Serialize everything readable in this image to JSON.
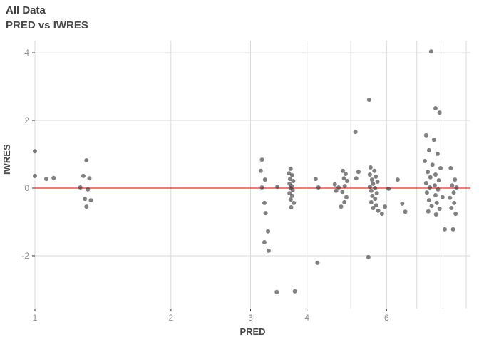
{
  "title": "All Data",
  "subtitle": "PRED vs IWRES",
  "colors": {
    "grid": "#d9d9d9",
    "tick_label": "#8c8c8c",
    "tick_mark": "#333333",
    "refline": "#d9352a",
    "point_fill": "rgba(50,50,50,0.62)"
  },
  "chart_data": {
    "type": "scatter",
    "title": "All Data",
    "subtitle": "PRED vs IWRES",
    "xlabel": "PRED",
    "ylabel": "IWRES",
    "x_scale": "log10",
    "xlim": [
      1,
      9.2
    ],
    "ylim": [
      -3.56,
      4.36
    ],
    "x_ticks": [
      1,
      2,
      3,
      4,
      6
    ],
    "x_gridlines": [
      1,
      2,
      3,
      4,
      5,
      6,
      7,
      8,
      9
    ],
    "y_ticks": [
      -2,
      0,
      2,
      4
    ],
    "grid": true,
    "legend": "none",
    "refline_y": 0,
    "points": [
      [
        1.0,
        1.09
      ],
      [
        1.0,
        0.36
      ],
      [
        1.06,
        0.27
      ],
      [
        1.1,
        0.3
      ],
      [
        1.3,
        0.82
      ],
      [
        1.28,
        0.36
      ],
      [
        1.32,
        0.29
      ],
      [
        1.26,
        0.02
      ],
      [
        1.31,
        -0.04
      ],
      [
        1.29,
        -0.32
      ],
      [
        1.33,
        -0.36
      ],
      [
        1.3,
        -0.55
      ],
      [
        3.18,
        0.84
      ],
      [
        3.16,
        0.51
      ],
      [
        3.23,
        0.25
      ],
      [
        3.18,
        0.02
      ],
      [
        3.44,
        0.04
      ],
      [
        3.22,
        -0.44
      ],
      [
        3.24,
        -0.74
      ],
      [
        3.28,
        -1.28
      ],
      [
        3.22,
        -1.6
      ],
      [
        3.29,
        -1.85
      ],
      [
        3.43,
        -3.07
      ],
      [
        3.68,
        0.57
      ],
      [
        3.65,
        0.44
      ],
      [
        3.71,
        0.38
      ],
      [
        3.67,
        0.27
      ],
      [
        3.73,
        0.21
      ],
      [
        3.66,
        0.13
      ],
      [
        3.7,
        0.06
      ],
      [
        3.68,
        0.0
      ],
      [
        3.72,
        -0.06
      ],
      [
        3.66,
        -0.15
      ],
      [
        3.71,
        -0.23
      ],
      [
        3.68,
        -0.34
      ],
      [
        3.74,
        -0.44
      ],
      [
        3.69,
        -0.57
      ],
      [
        3.76,
        -3.05
      ],
      [
        4.18,
        0.27
      ],
      [
        4.24,
        0.02
      ],
      [
        4.22,
        -2.21
      ],
      [
        4.61,
        0.11
      ],
      [
        4.7,
        0.02
      ],
      [
        4.64,
        -0.08
      ],
      [
        4.8,
        0.51
      ],
      [
        4.87,
        0.42
      ],
      [
        4.83,
        0.29
      ],
      [
        4.91,
        0.21
      ],
      [
        4.85,
        0.06
      ],
      [
        4.79,
        -0.11
      ],
      [
        4.89,
        -0.27
      ],
      [
        4.84,
        -0.42
      ],
      [
        4.76,
        -0.55
      ],
      [
        5.12,
        1.66
      ],
      [
        5.2,
        0.48
      ],
      [
        5.14,
        0.29
      ],
      [
        5.49,
        2.61
      ],
      [
        5.47,
        -2.04
      ],
      [
        5.53,
        0.61
      ],
      [
        5.64,
        0.51
      ],
      [
        5.51,
        0.4
      ],
      [
        5.68,
        0.34
      ],
      [
        5.57,
        0.25
      ],
      [
        5.73,
        0.19
      ],
      [
        5.6,
        0.13
      ],
      [
        5.51,
        0.04
      ],
      [
        5.66,
        0.0
      ],
      [
        5.55,
        -0.08
      ],
      [
        5.71,
        -0.15
      ],
      [
        5.58,
        -0.23
      ],
      [
        5.66,
        -0.32
      ],
      [
        5.55,
        -0.42
      ],
      [
        5.69,
        -0.51
      ],
      [
        5.6,
        -0.59
      ],
      [
        5.75,
        -0.67
      ],
      [
        5.86,
        -0.76
      ],
      [
        5.95,
        -0.55
      ],
      [
        6.06,
        -0.02
      ],
      [
        6.35,
        0.25
      ],
      [
        6.5,
        -0.46
      ],
      [
        6.6,
        -0.7
      ],
      [
        7.53,
        4.04
      ],
      [
        7.7,
        2.36
      ],
      [
        7.86,
        2.23
      ],
      [
        7.34,
        1.56
      ],
      [
        7.64,
        1.43
      ],
      [
        7.45,
        1.12
      ],
      [
        7.78,
        1.01
      ],
      [
        7.29,
        0.8
      ],
      [
        7.58,
        0.69
      ],
      [
        7.9,
        0.59
      ],
      [
        7.4,
        0.48
      ],
      [
        7.7,
        0.4
      ],
      [
        7.5,
        0.32
      ],
      [
        7.83,
        0.23
      ],
      [
        7.34,
        0.15
      ],
      [
        7.67,
        0.08
      ],
      [
        7.48,
        0.02
      ],
      [
        7.8,
        -0.04
      ],
      [
        7.37,
        -0.13
      ],
      [
        7.7,
        -0.21
      ],
      [
        7.98,
        -0.27
      ],
      [
        7.45,
        -0.36
      ],
      [
        7.75,
        -0.44
      ],
      [
        7.55,
        -0.53
      ],
      [
        7.86,
        -0.61
      ],
      [
        7.42,
        -0.69
      ],
      [
        7.72,
        -0.78
      ],
      [
        8.07,
        -1.22
      ],
      [
        8.32,
        0.59
      ],
      [
        8.5,
        0.25
      ],
      [
        8.38,
        0.08
      ],
      [
        8.57,
        0.02
      ],
      [
        8.45,
        -0.13
      ],
      [
        8.29,
        -0.29
      ],
      [
        8.47,
        -0.44
      ],
      [
        8.35,
        -0.59
      ],
      [
        8.53,
        -0.76
      ],
      [
        8.42,
        -1.22
      ]
    ]
  }
}
